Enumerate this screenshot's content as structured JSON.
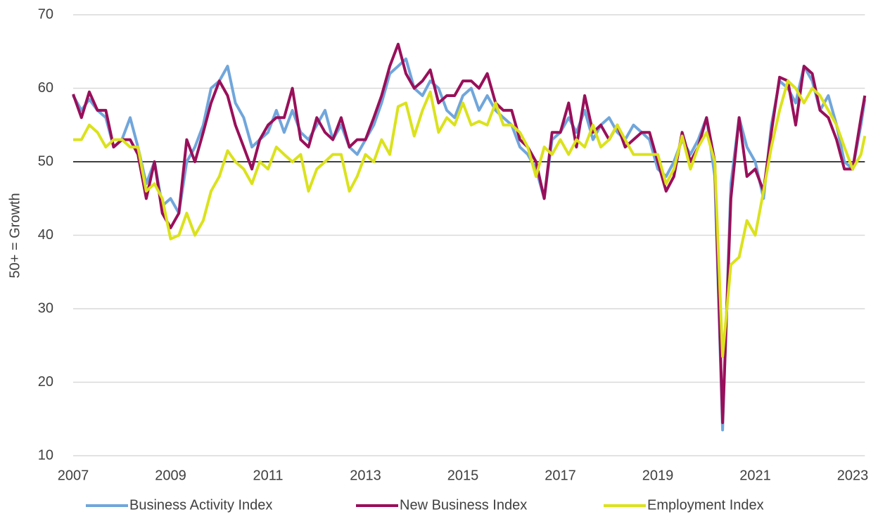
{
  "chart_data": {
    "type": "line",
    "y_label": "50+ = Growth",
    "xlim": [
      2007,
      2023.25
    ],
    "xticks": [
      2007,
      2009,
      2011,
      2013,
      2015,
      2017,
      2019,
      2021,
      2023
    ],
    "ylim": [
      10,
      70
    ],
    "yticks": [
      10,
      20,
      30,
      40,
      50,
      60,
      70
    ],
    "grid": true,
    "reference_line": 50,
    "legend": "bottom",
    "x": [
      2007,
      2007.17,
      2007.33,
      2007.5,
      2007.67,
      2007.83,
      2008,
      2008.17,
      2008.33,
      2008.5,
      2008.67,
      2008.83,
      2009,
      2009.17,
      2009.33,
      2009.5,
      2009.67,
      2009.83,
      2010,
      2010.17,
      2010.33,
      2010.5,
      2010.67,
      2010.83,
      2011,
      2011.17,
      2011.33,
      2011.5,
      2011.67,
      2011.83,
      2012,
      2012.17,
      2012.33,
      2012.5,
      2012.67,
      2012.83,
      2013,
      2013.17,
      2013.33,
      2013.5,
      2013.67,
      2013.83,
      2014,
      2014.17,
      2014.33,
      2014.5,
      2014.67,
      2014.83,
      2015,
      2015.17,
      2015.33,
      2015.5,
      2015.67,
      2015.83,
      2016,
      2016.17,
      2016.33,
      2016.5,
      2016.67,
      2016.83,
      2017,
      2017.17,
      2017.33,
      2017.5,
      2017.67,
      2017.83,
      2018,
      2018.17,
      2018.33,
      2018.5,
      2018.67,
      2018.83,
      2019,
      2019.17,
      2019.33,
      2019.5,
      2019.67,
      2019.83,
      2020,
      2020.17,
      2020.33,
      2020.5,
      2020.67,
      2020.83,
      2021,
      2021.17,
      2021.33,
      2021.5,
      2021.67,
      2021.83,
      2022,
      2022.17,
      2022.33,
      2022.5,
      2022.67,
      2022.83,
      2023,
      2023.17,
      2023.25
    ],
    "series": [
      {
        "name": "Business Activity Index",
        "color": "#70a6db",
        "values": [
          59,
          57,
          58.5,
          57,
          56,
          52,
          53,
          56,
          52,
          47,
          50,
          44,
          45,
          43,
          50,
          52,
          55,
          60,
          61,
          63,
          58,
          56,
          52,
          53,
          54,
          57,
          54,
          57,
          54,
          53,
          55,
          57,
          53,
          55,
          52,
          51,
          53,
          55,
          58,
          62,
          63,
          64,
          60,
          59,
          61,
          60,
          57,
          56,
          59,
          60,
          57,
          59,
          57,
          56,
          55,
          52,
          51,
          49,
          45,
          53,
          54,
          56,
          54,
          57,
          53,
          55,
          56,
          54,
          53,
          55,
          54,
          53,
          49,
          48,
          50,
          53,
          51,
          53,
          56,
          48,
          13.5,
          47,
          56,
          52,
          50,
          45,
          55,
          61,
          60,
          58,
          63,
          61,
          57,
          59,
          55,
          50,
          49,
          55,
          58.5
        ]
      },
      {
        "name": "New Business Index",
        "color": "#990f5a",
        "values": [
          59.2,
          56,
          59.5,
          57,
          57,
          52,
          53,
          53,
          51,
          45,
          50,
          43,
          41,
          43,
          53,
          50,
          54,
          58,
          61,
          59,
          55,
          52,
          49,
          53,
          55,
          56,
          56,
          60,
          53,
          52,
          56,
          54,
          53,
          56,
          52,
          53,
          53,
          56,
          59,
          63,
          66,
          62,
          60,
          61,
          62.5,
          58,
          59,
          59,
          61,
          61,
          60,
          62,
          58,
          57,
          57,
          53,
          52,
          50,
          45,
          54,
          54,
          58,
          52,
          59,
          54,
          55,
          53,
          55,
          52,
          53,
          54,
          54,
          50,
          46,
          48,
          54,
          50,
          52,
          56,
          50,
          14.5,
          45,
          56,
          48,
          49,
          46,
          54,
          61.5,
          61,
          55,
          63,
          62,
          57,
          56,
          53,
          49,
          49,
          56,
          59
        ]
      },
      {
        "name": "Employment Index",
        "color": "#dbe21c",
        "values": [
          53,
          53,
          55,
          54,
          52,
          53,
          53,
          52,
          52,
          46,
          47,
          45,
          39.5,
          40,
          43,
          40,
          42,
          46,
          48,
          51.5,
          50,
          49,
          47,
          50,
          49,
          52,
          51,
          50,
          51,
          46,
          49,
          50,
          51,
          51,
          46,
          48,
          51,
          50,
          53,
          51,
          57.5,
          58,
          53.5,
          57,
          59.5,
          54,
          56,
          55,
          58,
          55,
          55.5,
          55,
          58,
          55,
          55,
          54,
          52,
          48,
          52,
          51,
          53,
          51,
          53,
          52,
          55,
          52,
          53,
          55,
          53,
          51,
          51,
          51,
          51,
          47,
          49,
          53.5,
          49,
          52,
          54,
          50,
          23.5,
          36,
          37,
          42,
          40,
          46,
          52,
          57,
          61,
          60,
          58,
          60,
          59,
          57,
          55,
          52,
          49,
          51,
          53.5
        ]
      }
    ]
  }
}
